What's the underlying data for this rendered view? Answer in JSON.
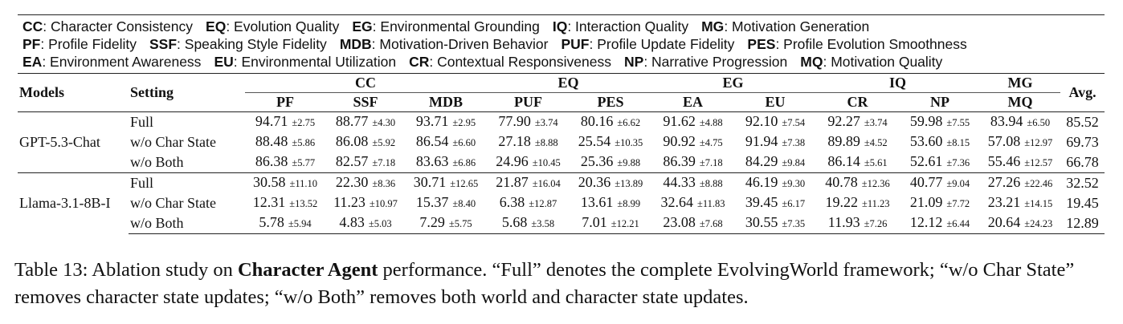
{
  "legend": [
    [
      {
        "abbr": "CC",
        "desc": ": Character Consistency"
      },
      {
        "abbr": "EQ",
        "desc": ": Evolution Quality"
      },
      {
        "abbr": "EG",
        "desc": ": Environmental Grounding"
      },
      {
        "abbr": "IQ",
        "desc": ": Interaction Quality"
      },
      {
        "abbr": "MG",
        "desc": ": Motivation Generation"
      }
    ],
    [
      {
        "abbr": "PF",
        "desc": ": Profile Fidelity"
      },
      {
        "abbr": "SSF",
        "desc": ": Speaking Style Fidelity"
      },
      {
        "abbr": "MDB",
        "desc": ": Motivation-Driven Behavior"
      },
      {
        "abbr": "PUF",
        "desc": ": Profile Update Fidelity"
      },
      {
        "abbr": "PES",
        "desc": ": Profile Evolution Smoothness"
      }
    ],
    [
      {
        "abbr": "EA",
        "desc": ": Environment Awareness"
      },
      {
        "abbr": "EU",
        "desc": ": Environmental Utilization"
      },
      {
        "abbr": "CR",
        "desc": ": Contextual Responsiveness"
      },
      {
        "abbr": "NP",
        "desc": ": Narrative Progression"
      },
      {
        "abbr": "MQ",
        "desc": ": Motivation Quality"
      }
    ]
  ],
  "table": {
    "header": {
      "models": "Models",
      "setting": "Setting",
      "avg": "Avg.",
      "groups": [
        {
          "name": "CC",
          "cols": [
            "PF",
            "SSF",
            "MDB"
          ]
        },
        {
          "name": "EQ",
          "cols": [
            "PUF",
            "PES"
          ]
        },
        {
          "name": "EG",
          "cols": [
            "EA",
            "EU"
          ]
        },
        {
          "name": "IQ",
          "cols": [
            "CR",
            "NP"
          ]
        },
        {
          "name": "MG",
          "cols": [
            "MQ"
          ]
        }
      ]
    },
    "blocks": [
      {
        "model": "GPT-5.3-Chat",
        "rows": [
          {
            "setting": "Full",
            "cells": [
              [
                "94.71",
                "±2.75"
              ],
              [
                "88.77",
                "±4.30"
              ],
              [
                "93.71",
                "±2.95"
              ],
              [
                "77.90",
                "±3.74"
              ],
              [
                "80.16",
                "±6.62"
              ],
              [
                "91.62",
                "±4.88"
              ],
              [
                "92.10",
                "±7.54"
              ],
              [
                "92.27",
                "±3.74"
              ],
              [
                "59.98",
                "±7.55"
              ],
              [
                "83.94",
                "±6.50"
              ]
            ],
            "avg": "85.52"
          },
          {
            "setting": "w/o Char State",
            "cells": [
              [
                "88.48",
                "±5.86"
              ],
              [
                "86.08",
                "±5.92"
              ],
              [
                "86.54",
                "±6.60"
              ],
              [
                "27.18",
                "±8.88"
              ],
              [
                "25.54",
                "±10.35"
              ],
              [
                "90.92",
                "±4.75"
              ],
              [
                "91.94",
                "±7.38"
              ],
              [
                "89.89",
                "±4.52"
              ],
              [
                "53.60",
                "±8.15"
              ],
              [
                "57.08",
                "±12.97"
              ]
            ],
            "avg": "69.73"
          },
          {
            "setting": "w/o Both",
            "cells": [
              [
                "86.38",
                "±5.77"
              ],
              [
                "82.57",
                "±7.18"
              ],
              [
                "83.63",
                "±6.86"
              ],
              [
                "24.96",
                "±10.45"
              ],
              [
                "25.36",
                "±9.88"
              ],
              [
                "86.39",
                "±7.18"
              ],
              [
                "84.29",
                "±9.84"
              ],
              [
                "86.14",
                "±5.61"
              ],
              [
                "52.61",
                "±7.36"
              ],
              [
                "55.46",
                "±12.57"
              ]
            ],
            "avg": "66.78"
          }
        ]
      },
      {
        "model": "Llama-3.1-8B-I",
        "rows": [
          {
            "setting": "Full",
            "cells": [
              [
                "30.58",
                "±11.10"
              ],
              [
                "22.30",
                "±8.36"
              ],
              [
                "30.71",
                "±12.65"
              ],
              [
                "21.87",
                "±16.04"
              ],
              [
                "20.36",
                "±13.89"
              ],
              [
                "44.33",
                "±8.88"
              ],
              [
                "46.19",
                "±9.30"
              ],
              [
                "40.78",
                "±12.36"
              ],
              [
                "40.77",
                "±9.04"
              ],
              [
                "27.26",
                "±22.46"
              ]
            ],
            "avg": "32.52"
          },
          {
            "setting": "w/o Char State",
            "cells": [
              [
                "12.31",
                "±13.52"
              ],
              [
                "11.23",
                "±10.97"
              ],
              [
                "15.37",
                "±8.40"
              ],
              [
                "6.38",
                "±12.87"
              ],
              [
                "13.61",
                "±8.99"
              ],
              [
                "32.64",
                "±11.83"
              ],
              [
                "39.45",
                "±6.17"
              ],
              [
                "19.22",
                "±11.23"
              ],
              [
                "21.09",
                "±7.72"
              ],
              [
                "23.21",
                "±14.15"
              ]
            ],
            "avg": "19.45"
          },
          {
            "setting": "w/o Both",
            "cells": [
              [
                "5.78",
                "±5.94"
              ],
              [
                "4.83",
                "±5.03"
              ],
              [
                "7.29",
                "±5.75"
              ],
              [
                "5.68",
                "±3.58"
              ],
              [
                "7.01",
                "±12.21"
              ],
              [
                "23.08",
                "±7.68"
              ],
              [
                "30.55",
                "±7.35"
              ],
              [
                "11.93",
                "±7.26"
              ],
              [
                "12.12",
                "±6.44"
              ],
              [
                "20.64",
                "±24.23"
              ]
            ],
            "avg": "12.89"
          }
        ]
      }
    ]
  },
  "caption": {
    "prefix": "Table 13: Ablation study on ",
    "bold": "Character Agent",
    "suffix": " performance. “Full” denotes the complete EvolvingWorld framework; “w/o Char State” removes character state updates; “w/o Both” removes both world and character state updates."
  }
}
